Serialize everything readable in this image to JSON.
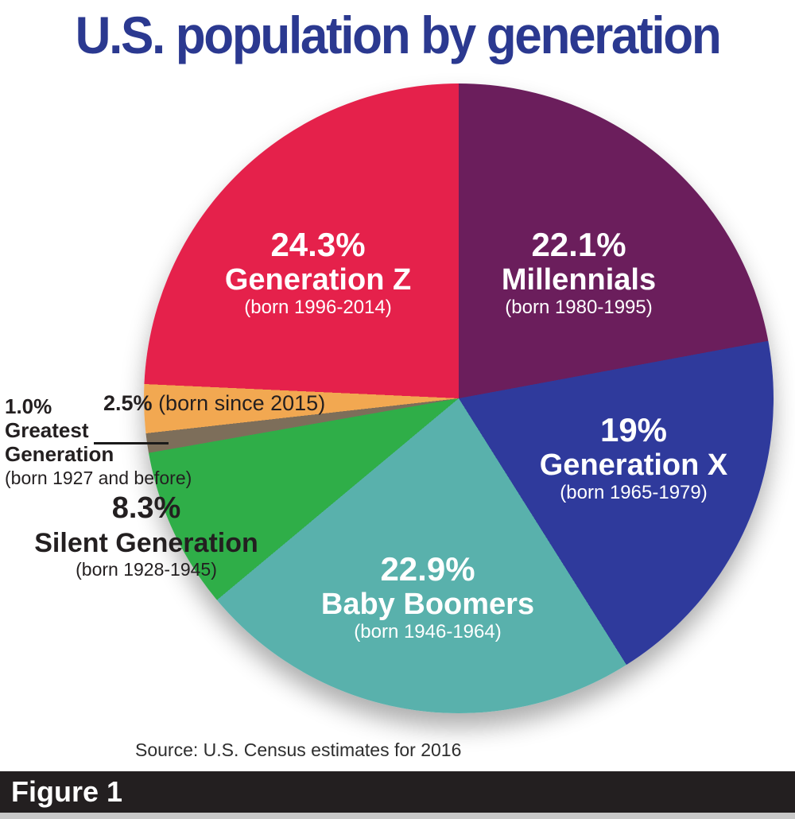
{
  "title": "U.S. population by generation",
  "source": "Source: U.S. Census estimates for 2016",
  "figure_label": "Figure 1",
  "colors": {
    "title": "#2B3990",
    "background": "#FFFFFF",
    "figure_bar": "#231F20",
    "figure_text": "#FFFFFF",
    "source_text": "#2E2E2E",
    "outside_label_text": "#231F20",
    "leader_line": "#1A1A1A",
    "bottom_strip": "#C8C8C8"
  },
  "chart_data": {
    "type": "pie",
    "title": "U.S. population by generation",
    "start_angle_deg": 0,
    "direction": "clockwise",
    "source": "Source: U.S. Census estimates for 2016",
    "slices": [
      {
        "label": "Millennials",
        "sublabel": "(born 1980-1995)",
        "pct_label": "22.1%",
        "value": 22.1,
        "color": "#6B1E5C",
        "text_color": "#FFFFFF"
      },
      {
        "label": "Generation X",
        "sublabel": "(born 1965-1979)",
        "pct_label": "19%",
        "value": 19,
        "color": "#2F3A9C",
        "text_color": "#FFFFFF"
      },
      {
        "label": "Baby Boomers",
        "sublabel": "(born 1946-1964)",
        "pct_label": "22.9%",
        "value": 22.9,
        "color": "#59B1AC",
        "text_color": "#FFFFFF"
      },
      {
        "label": "Silent Generation",
        "sublabel": "(born 1928-1945)",
        "pct_label": "8.3%",
        "value": 8.3,
        "color": "#2FAE48",
        "text_color": "#231F20"
      },
      {
        "label": "Greatest Generation",
        "label_line1": "Greatest",
        "label_line2": "Generation",
        "sublabel": "(born 1927 and before)",
        "pct_label": "1.0%",
        "value": 1.0,
        "color": "#7D6E5A",
        "text_color": "#231F20"
      },
      {
        "label": "",
        "sublabel": "(born since 2015)",
        "pct_label": "2.5%",
        "value": 2.5,
        "color": "#F2A851",
        "text_color": "#231F20"
      },
      {
        "label": "Generation Z",
        "sublabel": "(born 1996-2014)",
        "pct_label": "24.3%",
        "value": 24.3,
        "color": "#E5214B",
        "text_color": "#FFFFFF"
      }
    ]
  }
}
